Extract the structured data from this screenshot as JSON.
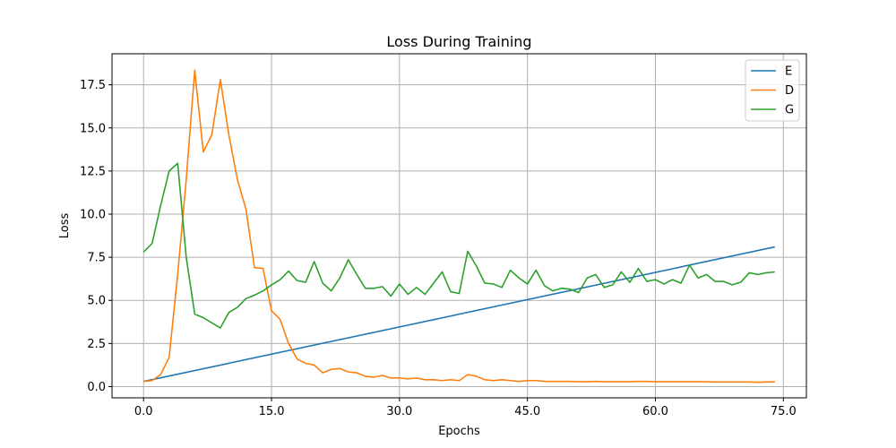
{
  "chart_data": {
    "type": "line",
    "title": "Loss During Training",
    "xlabel": "Epochs",
    "ylabel": "Loss",
    "xlim": [
      -3.7,
      77.7
    ],
    "ylim": [
      -0.65,
      19.3
    ],
    "xticks": [
      0,
      15,
      30,
      45,
      60,
      75
    ],
    "xtick_labels": [
      "0.0",
      "15.0",
      "30.0",
      "45.0",
      "60.0",
      "75.0"
    ],
    "yticks": [
      0,
      2.5,
      5,
      7.5,
      10,
      12.5,
      15,
      17.5
    ],
    "ytick_labels": [
      "0.0",
      "2.5",
      "5.0",
      "7.5",
      "10.0",
      "12.5",
      "15.0",
      "17.5"
    ],
    "grid": true,
    "legend": {
      "position": "top-right"
    },
    "series": [
      {
        "name": "E",
        "color": "#1f77b4",
        "x": [
          0,
          74
        ],
        "y": [
          0.3,
          8.1
        ]
      },
      {
        "name": "D",
        "color": "#ff7f0e",
        "x": [
          0,
          1,
          2,
          3,
          4,
          5,
          6,
          7,
          8,
          9,
          10,
          11,
          12,
          13,
          14,
          15,
          16,
          17,
          18,
          19,
          20,
          21,
          22,
          23,
          24,
          25,
          26,
          27,
          28,
          29,
          30,
          31,
          32,
          33,
          34,
          35,
          36,
          37,
          38,
          39,
          40,
          41,
          42,
          43,
          44,
          45,
          46,
          47,
          48,
          49,
          50,
          51,
          52,
          53,
          54,
          55,
          56,
          57,
          58,
          59,
          60,
          61,
          62,
          63,
          64,
          65,
          66,
          67,
          68,
          69,
          70,
          71,
          72,
          73,
          74
        ],
        "y": [
          0.3,
          0.35,
          0.7,
          1.7,
          6.5,
          12.0,
          18.35,
          13.6,
          14.6,
          17.8,
          14.6,
          12.0,
          10.3,
          6.9,
          6.85,
          4.4,
          3.9,
          2.5,
          1.6,
          1.35,
          1.25,
          0.8,
          1.0,
          1.05,
          0.85,
          0.8,
          0.6,
          0.55,
          0.65,
          0.5,
          0.5,
          0.45,
          0.5,
          0.4,
          0.4,
          0.35,
          0.4,
          0.35,
          0.7,
          0.6,
          0.4,
          0.35,
          0.4,
          0.35,
          0.3,
          0.35,
          0.35,
          0.3,
          0.3,
          0.3,
          0.3,
          0.28,
          0.28,
          0.3,
          0.28,
          0.28,
          0.28,
          0.28,
          0.3,
          0.3,
          0.28,
          0.28,
          0.28,
          0.28,
          0.28,
          0.28,
          0.28,
          0.27,
          0.27,
          0.27,
          0.27,
          0.27,
          0.25,
          0.27,
          0.28
        ]
      },
      {
        "name": "G",
        "color": "#2ca02c",
        "x": [
          0,
          1,
          2,
          3,
          4,
          5,
          6,
          7,
          8,
          9,
          10,
          11,
          12,
          13,
          14,
          15,
          16,
          17,
          18,
          19,
          20,
          21,
          22,
          23,
          24,
          25,
          26,
          27,
          28,
          29,
          30,
          31,
          32,
          33,
          34,
          35,
          36,
          37,
          38,
          39,
          40,
          41,
          42,
          43,
          44,
          45,
          46,
          47,
          48,
          49,
          50,
          51,
          52,
          53,
          54,
          55,
          56,
          57,
          58,
          59,
          60,
          61,
          62,
          63,
          64,
          65,
          66,
          67,
          68,
          69,
          70,
          71,
          72,
          73,
          74
        ],
        "y": [
          7.8,
          8.3,
          10.5,
          12.5,
          12.95,
          7.5,
          4.2,
          4.0,
          3.7,
          3.4,
          4.3,
          4.6,
          5.1,
          5.3,
          5.55,
          5.9,
          6.2,
          6.7,
          6.15,
          6.05,
          7.25,
          6.0,
          5.55,
          6.3,
          7.35,
          6.5,
          5.7,
          5.7,
          5.8,
          5.25,
          5.95,
          5.35,
          5.75,
          5.35,
          6.0,
          6.65,
          5.5,
          5.4,
          7.85,
          7.0,
          6.0,
          5.95,
          5.75,
          6.75,
          6.3,
          5.95,
          6.75,
          5.85,
          5.55,
          5.7,
          5.65,
          5.45,
          6.3,
          6.5,
          5.75,
          5.9,
          6.65,
          6.05,
          6.85,
          6.1,
          6.2,
          5.95,
          6.2,
          6.0,
          7.05,
          6.3,
          6.5,
          6.1,
          6.1,
          5.9,
          6.05,
          6.6,
          6.5,
          6.6,
          6.65
        ]
      }
    ]
  }
}
